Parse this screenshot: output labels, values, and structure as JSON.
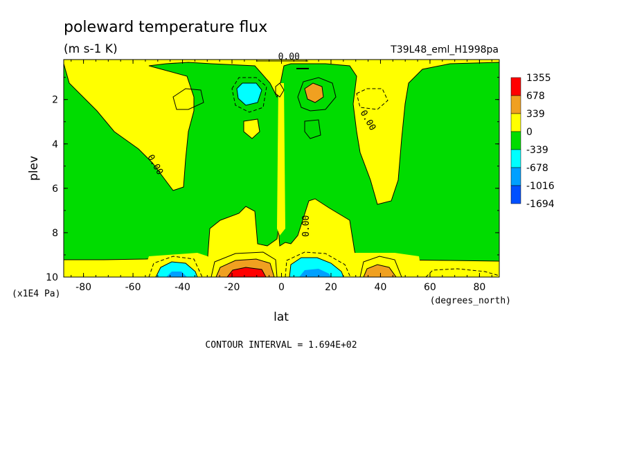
{
  "chart_data": {
    "type": "heatmap",
    "title": "poleward temperature flux",
    "units": "(m s-1 K)",
    "run_label": "T39L48_eml_H1998pa",
    "xlabel": "lat",
    "x_units": "(degrees_north)",
    "ylabel": "plev",
    "y_units": "(x1E4 Pa)",
    "xlim": [
      -88,
      88
    ],
    "ylim": [
      10,
      0.2
    ],
    "x_ticks": [
      -80,
      -60,
      -40,
      -20,
      0,
      20,
      40,
      60,
      80
    ],
    "y_ticks": [
      2,
      4,
      6,
      8,
      10
    ],
    "contour_interval_text": "CONTOUR INTERVAL = 1.694E+02",
    "contour_labels": [
      {
        "text": "0.00",
        "lat": -52,
        "plev": 5.0
      },
      {
        "text": "0.00",
        "lat": 34,
        "plev": 3.0
      },
      {
        "text": "0.00",
        "lat": 11,
        "plev": 7.7
      },
      {
        "text": "0.00",
        "lat": 3,
        "plev": 0.2
      }
    ],
    "legend": {
      "placement": "right",
      "levels": [
        {
          "label": "1355",
          "color": "#ff0000"
        },
        {
          "label": "678",
          "color": "#f0a020"
        },
        {
          "label": "339",
          "color": "#ffff00"
        },
        {
          "label": "0",
          "color": "#00dc00"
        },
        {
          "label": "-339",
          "color": "#00ffff"
        },
        {
          "label": "-678",
          "color": "#00a0ff"
        },
        {
          "label": "-1016",
          "color": "#0050ff"
        },
        {
          "label": "-1694",
          "color": null
        }
      ]
    },
    "colors": {
      "positive": "#ffff00",
      "negative": "#00dc00",
      "strong_positive": "#f0a020",
      "max_positive": "#ff0000",
      "strong_negative": "#00ffff",
      "very_negative": "#00a0ff"
    }
  }
}
